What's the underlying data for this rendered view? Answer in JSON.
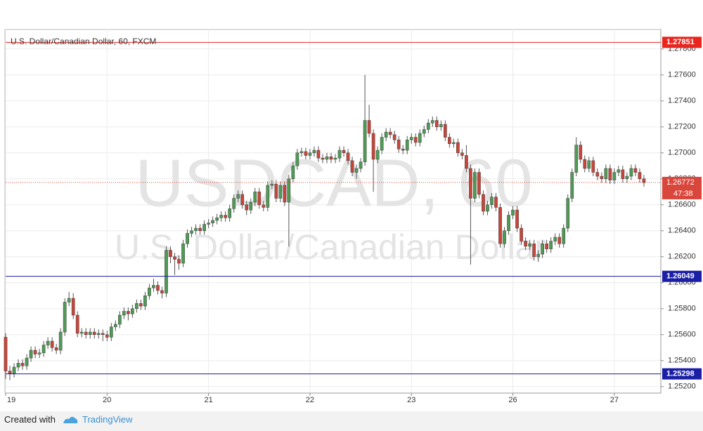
{
  "chart_data": {
    "type": "candlestick",
    "title": "U.S. Dollar/Canadian Dollar, 60, FXCM",
    "watermark": "USDCAD, 60",
    "watermark_subtitle": "U.S. Dollar/Canadian Dollar",
    "up_color": "#4f9a55",
    "down_color": "#c8453a",
    "open": [
      1.2558,
      1.2532,
      1.253,
      1.2535,
      1.2538,
      1.2536,
      1.2542,
      1.2548,
      1.2545,
      1.2546,
      1.2552,
      1.2555,
      1.255,
      1.2548,
      1.2562,
      1.2585,
      1.2588,
      1.2575,
      1.2561,
      1.2562,
      1.256,
      1.2562,
      1.256,
      1.2561,
      1.256,
      1.2558,
      1.2566,
      1.2568,
      1.2575,
      1.2578,
      1.2576,
      1.258,
      1.2584,
      1.2582,
      1.259,
      1.2596,
      1.2598,
      1.2594,
      1.2592,
      1.2625,
      1.262,
      1.2618,
      1.2615,
      1.263,
      1.2638,
      1.264,
      1.2642,
      1.264,
      1.2645,
      1.2646,
      1.2648,
      1.265,
      1.2652,
      1.265,
      1.2657,
      1.2665,
      1.2668,
      1.266,
      1.2656,
      1.2662,
      1.267,
      1.266,
      1.2658,
      1.2675,
      1.2676,
      1.2665,
      1.2675,
      1.2662,
      1.268,
      1.269,
      1.27,
      1.2701,
      1.2698,
      1.27,
      1.2702,
      1.2696,
      1.2695,
      1.2697,
      1.2695,
      1.2696,
      1.2702,
      1.27,
      1.2694,
      1.2685,
      1.2688,
      1.2693,
      1.2725,
      1.2715,
      1.2695,
      1.2702,
      1.2712,
      1.2716,
      1.2714,
      1.271,
      1.2703,
      1.2702,
      1.271,
      1.2712,
      1.2708,
      1.2715,
      1.2718,
      1.2723,
      1.2725,
      1.272,
      1.2722,
      1.2712,
      1.2707,
      1.2708,
      1.27,
      1.2698,
      1.2688,
      1.2665,
      1.2685,
      1.2668,
      1.2655,
      1.266,
      1.2666,
      1.2658,
      1.263,
      1.264,
      1.2652,
      1.2656,
      1.2642,
      1.2632,
      1.2628,
      1.263,
      1.262,
      1.2622,
      1.263,
      1.2626,
      1.2632,
      1.2635,
      1.263,
      1.2642,
      1.2665,
      1.2685,
      1.2706,
      1.2695,
      1.2688,
      1.2694,
      1.2685,
      1.2682,
      1.268,
      1.2688,
      1.2679,
      1.2685,
      1.2687,
      1.268,
      1.2682,
      1.2688,
      1.2685,
      1.268
    ],
    "high": [
      1.2561,
      1.2536,
      1.2538,
      1.2541,
      1.2541,
      1.2545,
      1.2551,
      1.2551,
      1.2549,
      1.2555,
      1.2558,
      1.2558,
      1.2553,
      1.2565,
      1.2588,
      1.2593,
      1.2592,
      1.2578,
      1.2565,
      1.2565,
      1.2565,
      1.2565,
      1.2564,
      1.2564,
      1.2563,
      1.2569,
      1.2571,
      1.2578,
      1.2581,
      1.2581,
      1.2583,
      1.2587,
      1.2587,
      1.2593,
      1.2599,
      1.2603,
      1.2601,
      1.2597,
      1.2628,
      1.2628,
      1.2623,
      1.2621,
      1.2633,
      1.2641,
      1.2643,
      1.2645,
      1.2645,
      1.2648,
      1.2649,
      1.2651,
      1.2653,
      1.2655,
      1.2655,
      1.266,
      1.2668,
      1.2671,
      1.2671,
      1.2663,
      1.2665,
      1.2673,
      1.2673,
      1.2663,
      1.2678,
      1.2679,
      1.2679,
      1.2678,
      1.2678,
      1.2683,
      1.2693,
      1.2703,
      1.2704,
      1.2704,
      1.2703,
      1.2705,
      1.2705,
      1.2699,
      1.27,
      1.27,
      1.2699,
      1.2705,
      1.2705,
      1.2703,
      1.2697,
      1.2691,
      1.2696,
      1.276,
      1.2737,
      1.2718,
      1.2705,
      1.2715,
      1.2719,
      1.2719,
      1.2717,
      1.2713,
      1.2706,
      1.2713,
      1.2715,
      1.2715,
      1.2718,
      1.2721,
      1.2726,
      1.2728,
      1.2728,
      1.2725,
      1.2725,
      1.2715,
      1.2711,
      1.2711,
      1.2703,
      1.2706,
      1.2691,
      1.2688,
      1.2688,
      1.2671,
      1.2663,
      1.2669,
      1.2669,
      1.2661,
      1.2643,
      1.2655,
      1.2659,
      1.2659,
      1.2645,
      1.2635,
      1.2633,
      1.2633,
      1.2625,
      1.2633,
      1.2633,
      1.2635,
      1.2638,
      1.2638,
      1.2645,
      1.2668,
      1.2688,
      1.2712,
      1.2709,
      1.2698,
      1.2697,
      1.2697,
      1.2688,
      1.2685,
      1.2691,
      1.2691,
      1.2688,
      1.269,
      1.269,
      1.2685,
      1.2691,
      1.2691,
      1.2688,
      1.2683
    ],
    "low": [
      1.2526,
      1.2525,
      1.2527,
      1.2532,
      1.2533,
      1.2533,
      1.2539,
      1.2542,
      1.2542,
      1.2543,
      1.2549,
      1.2547,
      1.2545,
      1.2545,
      1.2559,
      1.2582,
      1.2572,
      1.2558,
      1.2558,
      1.2557,
      1.2557,
      1.2557,
      1.2557,
      1.2555,
      1.2555,
      1.2555,
      1.2563,
      1.2565,
      1.2572,
      1.2571,
      1.2573,
      1.2577,
      1.2579,
      1.2579,
      1.2587,
      1.2593,
      1.2591,
      1.2588,
      1.2589,
      1.2615,
      1.2606,
      1.261,
      1.2612,
      1.2627,
      1.2635,
      1.2637,
      1.2637,
      1.2637,
      1.2642,
      1.2643,
      1.2645,
      1.2647,
      1.2647,
      1.2647,
      1.2654,
      1.2662,
      1.2657,
      1.2652,
      1.2653,
      1.2659,
      1.2657,
      1.2655,
      1.2655,
      1.2672,
      1.2662,
      1.2662,
      1.2659,
      1.2628,
      1.2677,
      1.2687,
      1.2697,
      1.2695,
      1.2695,
      1.2697,
      1.2693,
      1.2692,
      1.2692,
      1.2692,
      1.2692,
      1.2693,
      1.2697,
      1.2691,
      1.2682,
      1.268,
      1.2685,
      1.269,
      1.2712,
      1.267,
      1.2692,
      1.2699,
      1.2709,
      1.2711,
      1.2707,
      1.27,
      1.2699,
      1.2699,
      1.2707,
      1.2705,
      1.2705,
      1.2712,
      1.2715,
      1.272,
      1.2717,
      1.2717,
      1.2709,
      1.2704,
      1.2704,
      1.2697,
      1.2695,
      1.2685,
      1.2614,
      1.2662,
      1.2665,
      1.2652,
      1.2652,
      1.2657,
      1.2655,
      1.2627,
      1.2627,
      1.2637,
      1.2649,
      1.2639,
      1.2629,
      1.2625,
      1.2625,
      1.2617,
      1.2616,
      1.2619,
      1.2623,
      1.2623,
      1.2629,
      1.2627,
      1.2627,
      1.2639,
      1.2662,
      1.2682,
      1.2692,
      1.2685,
      1.2685,
      1.2682,
      1.2679,
      1.2677,
      1.2677,
      1.2676,
      1.2676,
      1.2682,
      1.2677,
      1.2677,
      1.2679,
      1.2682,
      1.2677,
      1.2674
    ],
    "close": [
      1.2532,
      1.253,
      1.2535,
      1.2538,
      1.2536,
      1.2542,
      1.2548,
      1.2545,
      1.2546,
      1.2552,
      1.2555,
      1.255,
      1.2548,
      1.2562,
      1.2585,
      1.2588,
      1.2575,
      1.2561,
      1.2562,
      1.256,
      1.2562,
      1.256,
      1.2561,
      1.256,
      1.2558,
      1.2566,
      1.2568,
      1.2575,
      1.2578,
      1.2576,
      1.258,
      1.2584,
      1.2582,
      1.259,
      1.2596,
      1.2598,
      1.2594,
      1.2592,
      1.2625,
      1.262,
      1.2618,
      1.2615,
      1.263,
      1.2638,
      1.264,
      1.2642,
      1.264,
      1.2645,
      1.2646,
      1.2648,
      1.265,
      1.2652,
      1.265,
      1.2657,
      1.2665,
      1.2668,
      1.266,
      1.2656,
      1.2662,
      1.267,
      1.266,
      1.2658,
      1.2675,
      1.2676,
      1.2665,
      1.2675,
      1.2662,
      1.268,
      1.269,
      1.27,
      1.2701,
      1.2698,
      1.27,
      1.2702,
      1.2696,
      1.2695,
      1.2697,
      1.2695,
      1.2696,
      1.2702,
      1.27,
      1.2694,
      1.2685,
      1.2688,
      1.2693,
      1.2725,
      1.2715,
      1.2695,
      1.2702,
      1.2712,
      1.2716,
      1.2714,
      1.271,
      1.2703,
      1.2702,
      1.271,
      1.2712,
      1.2708,
      1.2715,
      1.2718,
      1.2723,
      1.2725,
      1.272,
      1.2722,
      1.2712,
      1.2707,
      1.2708,
      1.27,
      1.2698,
      1.2688,
      1.2665,
      1.2685,
      1.2668,
      1.2655,
      1.266,
      1.2666,
      1.2658,
      1.263,
      1.264,
      1.2652,
      1.2656,
      1.2642,
      1.2632,
      1.2628,
      1.263,
      1.262,
      1.2622,
      1.263,
      1.2626,
      1.2632,
      1.2635,
      1.263,
      1.2642,
      1.2665,
      1.2685,
      1.2706,
      1.2695,
      1.2688,
      1.2694,
      1.2685,
      1.2682,
      1.268,
      1.2688,
      1.2679,
      1.2685,
      1.2687,
      1.268,
      1.2682,
      1.2688,
      1.2685,
      1.268,
      1.2677
    ],
    "xlim": [
      0,
      155
    ],
    "xticks": [
      {
        "value": 0,
        "label": "19"
      },
      {
        "value": 24,
        "label": "20"
      },
      {
        "value": 48,
        "label": "21"
      },
      {
        "value": 72,
        "label": "22"
      },
      {
        "value": 96,
        "label": "23"
      },
      {
        "value": 120,
        "label": "26"
      },
      {
        "value": 144,
        "label": "27"
      }
    ],
    "ylim": [
      1.2515,
      1.2795
    ],
    "yticks": [
      {
        "value": 1.252,
        "label": "1.25200"
      },
      {
        "value": 1.254,
        "label": "1.25400"
      },
      {
        "value": 1.256,
        "label": "1.25600"
      },
      {
        "value": 1.258,
        "label": "1.25800"
      },
      {
        "value": 1.26,
        "label": "1.26000"
      },
      {
        "value": 1.262,
        "label": "1.26200"
      },
      {
        "value": 1.264,
        "label": "1.26400"
      },
      {
        "value": 1.266,
        "label": "1.26600"
      },
      {
        "value": 1.268,
        "label": "1.26800"
      },
      {
        "value": 1.27,
        "label": "1.27000"
      },
      {
        "value": 1.272,
        "label": "1.27200"
      },
      {
        "value": 1.274,
        "label": "1.27400"
      },
      {
        "value": 1.276,
        "label": "1.27600"
      },
      {
        "value": 1.278,
        "label": "1.27800"
      }
    ],
    "grid": true,
    "price_lines": [
      {
        "value": 1.27851,
        "color": "#e8261f"
      },
      {
        "value": 1.26049,
        "color": "#1b1fa6"
      },
      {
        "value": 1.25298,
        "color": "#1b1fa6"
      }
    ],
    "current_price": {
      "value": 1.26772,
      "countdown": "47:38",
      "color": "#d9463b"
    }
  },
  "footer": {
    "text": "Created with",
    "brand": "TradingView"
  }
}
